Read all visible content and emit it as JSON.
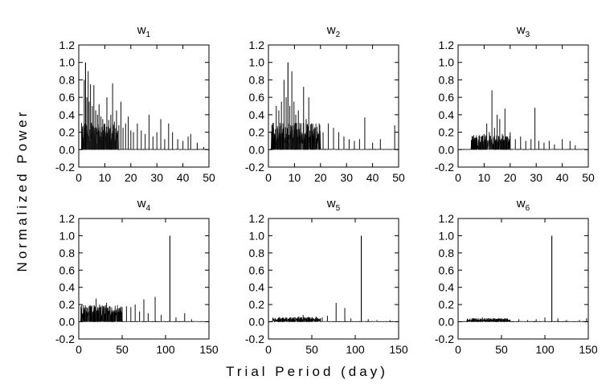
{
  "figure": {
    "ylabel": "Normalized Power",
    "xlabel": "Trial Period (day)"
  },
  "chart_data": [
    {
      "type": "line",
      "title": "w",
      "title_sub": "1",
      "xlim": [
        0,
        50
      ],
      "ylim": [
        -0.2,
        1.2
      ],
      "xticks": [
        0,
        10,
        20,
        30,
        40,
        50
      ],
      "yticks": [
        -0.2,
        0.0,
        0.2,
        0.4,
        0.6,
        0.8,
        1.0,
        1.2
      ],
      "peaks": [
        [
          2.1,
          0.8
        ],
        [
          2.6,
          1.0
        ],
        [
          3.1,
          0.6
        ],
        [
          3.6,
          0.9
        ],
        [
          4.0,
          0.55
        ],
        [
          4.5,
          0.75
        ],
        [
          5.2,
          0.5
        ],
        [
          5.8,
          0.74
        ],
        [
          6.5,
          0.45
        ],
        [
          7.2,
          0.4
        ],
        [
          7.8,
          0.52
        ],
        [
          8.5,
          0.38
        ],
        [
          9.2,
          0.35
        ],
        [
          10.0,
          0.3
        ],
        [
          10.8,
          0.6
        ],
        [
          11.5,
          0.34
        ],
        [
          12.3,
          0.4
        ],
        [
          13.0,
          0.76
        ],
        [
          13.7,
          0.32
        ],
        [
          14.5,
          0.45
        ],
        [
          15.4,
          0.28
        ],
        [
          16.2,
          0.55
        ],
        [
          17.0,
          0.25
        ],
        [
          18.0,
          0.3
        ],
        [
          19.0,
          0.38
        ],
        [
          20.0,
          0.22
        ],
        [
          21.0,
          0.2
        ],
        [
          22.5,
          0.3
        ],
        [
          24.0,
          0.22
        ],
        [
          25.5,
          0.18
        ],
        [
          27.0,
          0.4
        ],
        [
          28.5,
          0.15
        ],
        [
          30.0,
          0.2
        ],
        [
          31.5,
          0.35
        ],
        [
          33.0,
          0.12
        ],
        [
          34.5,
          0.3
        ],
        [
          36.0,
          0.2
        ],
        [
          38.0,
          0.12
        ],
        [
          40.0,
          0.1
        ],
        [
          42.0,
          0.15
        ],
        [
          43.0,
          0.18
        ],
        [
          45.5,
          0.08
        ],
        [
          48.0,
          0.03
        ]
      ],
      "noise": {
        "x": [
          1,
          15
        ],
        "amp": 0.22
      }
    },
    {
      "type": "line",
      "title": "w",
      "title_sub": "2",
      "xlim": [
        0,
        50
      ],
      "ylim": [
        -0.2,
        1.2
      ],
      "xticks": [
        0,
        10,
        20,
        30,
        40,
        50
      ],
      "yticks": [
        -0.2,
        0.0,
        0.2,
        0.4,
        0.6,
        0.8,
        1.0,
        1.2
      ],
      "peaks": [
        [
          3.0,
          0.5
        ],
        [
          4.0,
          0.45
        ],
        [
          5.0,
          0.55
        ],
        [
          6.0,
          0.8
        ],
        [
          6.8,
          0.6
        ],
        [
          7.5,
          1.0
        ],
        [
          8.2,
          0.5
        ],
        [
          9.0,
          0.9
        ],
        [
          9.8,
          0.55
        ],
        [
          10.5,
          0.4
        ],
        [
          11.5,
          0.45
        ],
        [
          12.5,
          0.3
        ],
        [
          13.5,
          0.72
        ],
        [
          14.5,
          0.35
        ],
        [
          15.5,
          0.6
        ],
        [
          16.5,
          0.3
        ],
        [
          18.0,
          0.25
        ],
        [
          19.5,
          0.3
        ],
        [
          21.0,
          0.2
        ],
        [
          23.0,
          0.3
        ],
        [
          25.0,
          0.25
        ],
        [
          27.0,
          0.2
        ],
        [
          29.0,
          0.15
        ],
        [
          31.0,
          0.12
        ],
        [
          33.0,
          0.1
        ],
        [
          35.0,
          0.12
        ],
        [
          37.0,
          0.37
        ],
        [
          40.0,
          0.08
        ],
        [
          43.0,
          0.12
        ],
        [
          48.5,
          0.28
        ]
      ],
      "noise": {
        "x": [
          1,
          20
        ],
        "amp": 0.22
      }
    },
    {
      "type": "line",
      "title": "w",
      "title_sub": "3",
      "xlim": [
        0,
        50
      ],
      "ylim": [
        -0.2,
        1.2
      ],
      "xticks": [
        0,
        10,
        20,
        30,
        40,
        50
      ],
      "yticks": [
        -0.2,
        0.0,
        0.2,
        0.4,
        0.6,
        0.8,
        1.0,
        1.2
      ],
      "peaks": [
        [
          8.0,
          0.12
        ],
        [
          9.0,
          0.15
        ],
        [
          10.0,
          0.18
        ],
        [
          11.0,
          0.3
        ],
        [
          12.0,
          0.2
        ],
        [
          13.0,
          0.68
        ],
        [
          14.0,
          0.25
        ],
        [
          15.0,
          0.4
        ],
        [
          16.0,
          0.35
        ],
        [
          17.0,
          0.18
        ],
        [
          18.0,
          0.47
        ],
        [
          19.0,
          0.15
        ],
        [
          20.0,
          0.2
        ],
        [
          22.0,
          0.12
        ],
        [
          24.0,
          0.15
        ],
        [
          26.0,
          0.1
        ],
        [
          28.0,
          0.12
        ],
        [
          29.5,
          0.48
        ],
        [
          31.0,
          0.1
        ],
        [
          33.0,
          0.08
        ],
        [
          35.0,
          0.1
        ],
        [
          37.0,
          0.06
        ],
        [
          40.0,
          0.12
        ],
        [
          43.0,
          0.1
        ],
        [
          45.0,
          0.05
        ]
      ],
      "noise": {
        "x": [
          5,
          20
        ],
        "amp": 0.12
      }
    },
    {
      "type": "line",
      "title": "w",
      "title_sub": "4",
      "xlim": [
        0,
        150
      ],
      "ylim": [
        -0.2,
        1.2
      ],
      "xticks": [
        0,
        50,
        100,
        150
      ],
      "yticks": [
        -0.2,
        0.0,
        0.2,
        0.4,
        0.6,
        0.8,
        1.0,
        1.2
      ],
      "peaks": [
        [
          8,
          0.1
        ],
        [
          12,
          0.15
        ],
        [
          16,
          0.12
        ],
        [
          20,
          0.27
        ],
        [
          24,
          0.2
        ],
        [
          28,
          0.18
        ],
        [
          32,
          0.22
        ],
        [
          36,
          0.15
        ],
        [
          40,
          0.12
        ],
        [
          45,
          0.1
        ],
        [
          50,
          0.17
        ],
        [
          55,
          0.18
        ],
        [
          60,
          0.17
        ],
        [
          65,
          0.2
        ],
        [
          70,
          0.12
        ],
        [
          75,
          0.26
        ],
        [
          80,
          0.1
        ],
        [
          88,
          0.29
        ],
        [
          95,
          0.08
        ],
        [
          105,
          1.0
        ],
        [
          112,
          0.05
        ],
        [
          122,
          0.1
        ],
        [
          130,
          0.03
        ]
      ],
      "noise": {
        "x": [
          2,
          50
        ],
        "amp": 0.14
      }
    },
    {
      "type": "line",
      "title": "w",
      "title_sub": "5",
      "xlim": [
        0,
        150
      ],
      "ylim": [
        -0.2,
        1.2
      ],
      "xticks": [
        0,
        50,
        100,
        150
      ],
      "yticks": [
        -0.2,
        0.0,
        0.2,
        0.4,
        0.6,
        0.8,
        1.0,
        1.2
      ],
      "peaks": [
        [
          15,
          0.04
        ],
        [
          25,
          0.05
        ],
        [
          35,
          0.06
        ],
        [
          40,
          0.08
        ],
        [
          45,
          0.05
        ],
        [
          55,
          0.06
        ],
        [
          62,
          0.05
        ],
        [
          68,
          0.07
        ],
        [
          78,
          0.22
        ],
        [
          88,
          0.16
        ],
        [
          95,
          0.04
        ],
        [
          107,
          1.0
        ],
        [
          115,
          0.03
        ],
        [
          125,
          0.02
        ],
        [
          140,
          0.02
        ]
      ],
      "noise": {
        "x": [
          5,
          60
        ],
        "amp": 0.04
      }
    },
    {
      "type": "line",
      "title": "w",
      "title_sub": "6",
      "xlim": [
        0,
        150
      ],
      "ylim": [
        -0.2,
        1.2
      ],
      "xticks": [
        0,
        50,
        100,
        150
      ],
      "yticks": [
        -0.2,
        0.0,
        0.2,
        0.4,
        0.6,
        0.8,
        1.0,
        1.2
      ],
      "peaks": [
        [
          20,
          0.03
        ],
        [
          28,
          0.05
        ],
        [
          35,
          0.04
        ],
        [
          42,
          0.03
        ],
        [
          55,
          0.04
        ],
        [
          70,
          0.03
        ],
        [
          80,
          0.02
        ],
        [
          90,
          0.03
        ],
        [
          100,
          0.05
        ],
        [
          108,
          1.0
        ],
        [
          115,
          0.04
        ],
        [
          125,
          0.02
        ],
        [
          140,
          0.02
        ],
        [
          148,
          0.04
        ]
      ],
      "noise": {
        "x": [
          10,
          60
        ],
        "amp": 0.03
      }
    }
  ]
}
